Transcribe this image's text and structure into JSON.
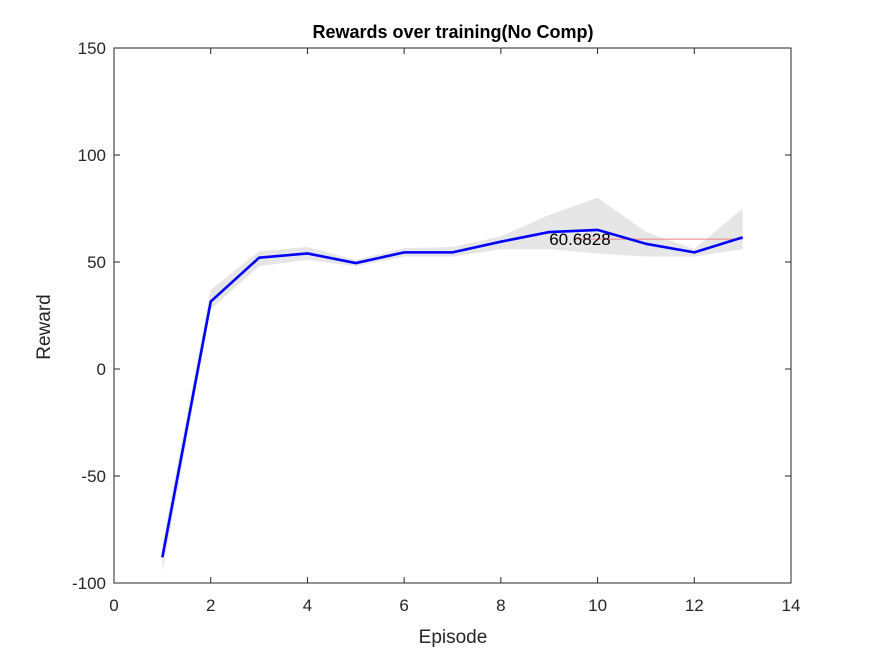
{
  "chart_data": {
    "type": "line",
    "title": "Rewards over training(No Comp)",
    "xlabel": "Episode",
    "ylabel": "Reward",
    "xlim": [
      0,
      14
    ],
    "ylim": [
      -100,
      150
    ],
    "xticks": [
      0,
      2,
      4,
      6,
      8,
      10,
      12,
      14
    ],
    "yticks": [
      -100,
      -50,
      0,
      50,
      100,
      150
    ],
    "grid": false,
    "legend": "none",
    "series": [
      {
        "x": [
          1,
          2,
          3,
          4,
          5,
          6,
          7,
          8,
          9,
          10,
          11,
          12,
          13
        ],
        "values": [
          -88,
          31.5,
          52,
          54,
          49.5,
          54.5,
          54.5,
          59.5,
          64,
          65,
          58.5,
          54.5,
          61.5
        ],
        "color": "#0000ff"
      }
    ],
    "band": {
      "x": [
        1,
        2,
        3,
        4,
        5,
        6,
        7,
        8,
        9,
        10,
        11,
        12,
        13
      ],
      "upper": [
        -82,
        37,
        55,
        57,
        51,
        56.5,
        57,
        62,
        72,
        80,
        64,
        56,
        75
      ],
      "lower": [
        -95,
        28,
        48,
        51,
        48,
        52.5,
        52.5,
        56,
        56,
        54,
        52.5,
        52.5,
        56
      ],
      "color": "#e6e6e6"
    },
    "reference_line": {
      "y": 60.6828,
      "x_range": [
        9.5,
        13
      ],
      "color": "#f08080"
    },
    "annotation": {
      "text": "60.6828",
      "x": 9,
      "y": 60.6828
    }
  }
}
